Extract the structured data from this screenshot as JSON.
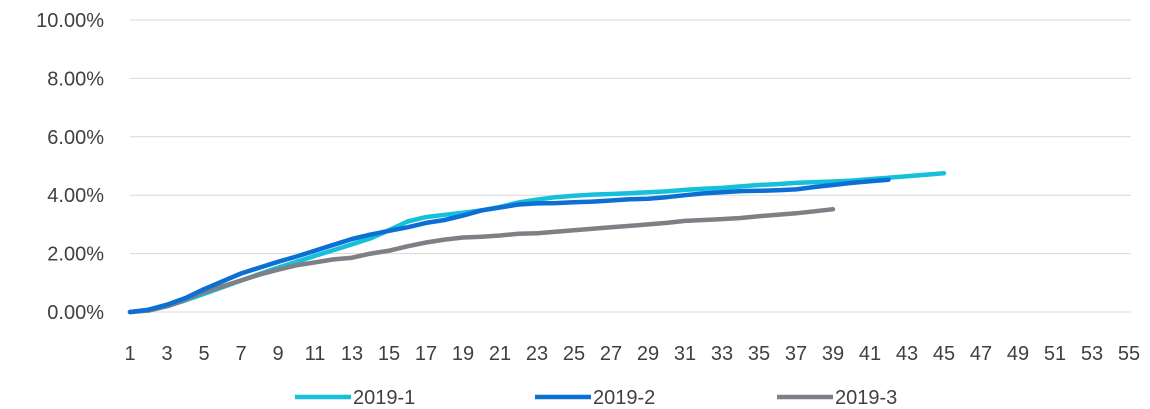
{
  "chart_data": {
    "type": "line",
    "title": "",
    "xlabel": "",
    "ylabel": "",
    "x_ticks": [
      "1",
      "3",
      "5",
      "7",
      "9",
      "11",
      "13",
      "15",
      "17",
      "19",
      "21",
      "23",
      "25",
      "27",
      "29",
      "31",
      "33",
      "35",
      "37",
      "39",
      "41",
      "43",
      "45",
      "47",
      "49",
      "51",
      "53",
      "55"
    ],
    "y_ticks": [
      "0.00%",
      "2.00%",
      "4.00%",
      "6.00%",
      "8.00%",
      "10.00%"
    ],
    "xlim": [
      1,
      55
    ],
    "ylim": [
      0,
      10
    ],
    "grid": "horizontal",
    "legend_position": "bottom",
    "series": [
      {
        "name": "2019-1",
        "color": "#16BFDA",
        "x": [
          1,
          2,
          3,
          4,
          5,
          6,
          7,
          8,
          9,
          10,
          11,
          12,
          13,
          14,
          15,
          16,
          17,
          18,
          19,
          20,
          21,
          22,
          23,
          24,
          25,
          26,
          27,
          28,
          29,
          30,
          31,
          32,
          33,
          34,
          35,
          36,
          37,
          38,
          39,
          40,
          41,
          42,
          43,
          44,
          45
        ],
        "values": [
          0.0,
          0.05,
          0.2,
          0.4,
          0.62,
          0.85,
          1.08,
          1.3,
          1.52,
          1.72,
          1.92,
          2.12,
          2.32,
          2.52,
          2.8,
          3.1,
          3.25,
          3.33,
          3.4,
          3.48,
          3.6,
          3.75,
          3.85,
          3.93,
          3.98,
          4.02,
          4.04,
          4.07,
          4.1,
          4.13,
          4.18,
          4.22,
          4.25,
          4.3,
          4.35,
          4.38,
          4.42,
          4.45,
          4.47,
          4.5,
          4.55,
          4.6,
          4.65,
          4.7,
          4.75
        ]
      },
      {
        "name": "2019-2",
        "color": "#0B6FD4",
        "x": [
          1,
          2,
          3,
          4,
          5,
          6,
          7,
          8,
          9,
          10,
          11,
          12,
          13,
          14,
          15,
          16,
          17,
          18,
          19,
          20,
          21,
          22,
          23,
          24,
          25,
          26,
          27,
          28,
          29,
          30,
          31,
          32,
          33,
          34,
          35,
          36,
          37,
          38,
          39,
          40,
          41,
          42
        ],
        "values": [
          0.0,
          0.08,
          0.25,
          0.48,
          0.78,
          1.05,
          1.32,
          1.52,
          1.72,
          1.9,
          2.1,
          2.3,
          2.5,
          2.65,
          2.78,
          2.9,
          3.05,
          3.15,
          3.3,
          3.48,
          3.58,
          3.68,
          3.72,
          3.73,
          3.76,
          3.78,
          3.82,
          3.86,
          3.88,
          3.93,
          4.0,
          4.06,
          4.1,
          4.14,
          4.15,
          4.17,
          4.2,
          4.28,
          4.35,
          4.42,
          4.48,
          4.53
        ]
      },
      {
        "name": "2019-3",
        "color": "#7F7F86",
        "x": [
          1,
          2,
          3,
          4,
          5,
          6,
          7,
          8,
          9,
          10,
          11,
          12,
          13,
          14,
          15,
          16,
          17,
          18,
          19,
          20,
          21,
          22,
          23,
          24,
          25,
          26,
          27,
          28,
          29,
          30,
          31,
          32,
          33,
          34,
          35,
          36,
          37,
          38,
          39
        ],
        "values": [
          0.0,
          0.05,
          0.2,
          0.42,
          0.68,
          0.88,
          1.08,
          1.28,
          1.45,
          1.6,
          1.7,
          1.8,
          1.86,
          2.0,
          2.1,
          2.25,
          2.38,
          2.48,
          2.55,
          2.58,
          2.62,
          2.68,
          2.7,
          2.75,
          2.8,
          2.85,
          2.9,
          2.95,
          3.0,
          3.05,
          3.12,
          3.15,
          3.18,
          3.22,
          3.28,
          3.33,
          3.38,
          3.45,
          3.52
        ]
      }
    ]
  }
}
